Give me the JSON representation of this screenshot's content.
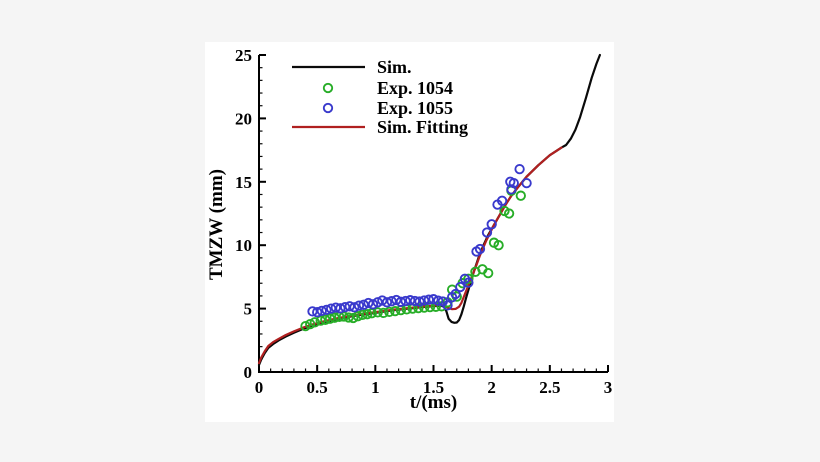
{
  "colors": {
    "page_background": "#f5f5f5",
    "panel_background": "#ffffff",
    "axis": "#000000"
  },
  "chart_data": {
    "type": "line",
    "title": "",
    "xlabel": "t/(ms)",
    "ylabel": "TMZW (mm)",
    "xlim": [
      0,
      3
    ],
    "ylim": [
      0,
      25
    ],
    "grid": false,
    "legend_position": "top-left",
    "x_major_ticks": [
      0,
      0.5,
      1,
      1.5,
      2,
      2.5,
      3
    ],
    "x_tick_labels": [
      "0",
      "0.5",
      "1",
      "1.5",
      "2",
      "2.5",
      "3"
    ],
    "x_minor_step": 0.1,
    "y_major_ticks": [
      0,
      5,
      10,
      15,
      20,
      25
    ],
    "y_tick_labels": [
      "0",
      "5",
      "10",
      "15",
      "20",
      "25"
    ],
    "y_minor_step": 1,
    "series": [
      {
        "name": "Sim.",
        "type": "line",
        "color": "#0a0a0a",
        "points": [
          [
            0,
            0.55
          ],
          [
            0.02,
            1.0
          ],
          [
            0.05,
            1.5
          ],
          [
            0.08,
            1.9
          ],
          [
            0.12,
            2.2
          ],
          [
            0.17,
            2.5
          ],
          [
            0.23,
            2.8
          ],
          [
            0.3,
            3.1
          ],
          [
            0.38,
            3.4
          ],
          [
            0.47,
            3.7
          ],
          [
            0.57,
            3.95
          ],
          [
            0.68,
            4.18
          ],
          [
            0.8,
            4.4
          ],
          [
            0.92,
            4.57
          ],
          [
            1.04,
            4.72
          ],
          [
            1.16,
            4.88
          ],
          [
            1.28,
            5.0
          ],
          [
            1.4,
            5.12
          ],
          [
            1.5,
            5.2
          ],
          [
            1.56,
            5.24
          ],
          [
            1.59,
            5.15
          ],
          [
            1.61,
            4.8
          ],
          [
            1.63,
            4.2
          ],
          [
            1.655,
            3.95
          ],
          [
            1.68,
            3.88
          ],
          [
            1.7,
            3.9
          ],
          [
            1.72,
            4.1
          ],
          [
            1.74,
            4.55
          ],
          [
            1.76,
            5.15
          ],
          [
            1.78,
            5.85
          ],
          [
            1.81,
            6.8
          ],
          [
            1.85,
            8.0
          ],
          [
            1.89,
            9.1
          ],
          [
            1.93,
            10.0
          ],
          [
            1.97,
            10.8
          ],
          [
            2.02,
            11.6
          ],
          [
            2.07,
            12.4
          ],
          [
            2.12,
            13.2
          ],
          [
            2.17,
            13.9
          ],
          [
            2.22,
            14.5
          ],
          [
            2.3,
            15.4
          ],
          [
            2.4,
            16.3
          ],
          [
            2.5,
            17.1
          ],
          [
            2.55,
            17.4
          ],
          [
            2.6,
            17.7
          ],
          [
            2.64,
            17.9
          ],
          [
            2.68,
            18.4
          ],
          [
            2.72,
            19.1
          ],
          [
            2.76,
            20.1
          ],
          [
            2.81,
            21.6
          ],
          [
            2.86,
            23.2
          ],
          [
            2.9,
            24.3
          ],
          [
            2.93,
            25.0
          ]
        ]
      },
      {
        "name": "Exp. 1054",
        "type": "scatter",
        "color": "#27ad27",
        "points": [
          [
            0.4,
            3.62
          ],
          [
            0.44,
            3.78
          ],
          [
            0.48,
            3.92
          ],
          [
            0.53,
            4.05
          ],
          [
            0.57,
            4.12
          ],
          [
            0.61,
            4.2
          ],
          [
            0.65,
            4.28
          ],
          [
            0.69,
            4.35
          ],
          [
            0.73,
            4.38
          ],
          [
            0.77,
            4.3
          ],
          [
            0.81,
            4.26
          ],
          [
            0.85,
            4.4
          ],
          [
            0.89,
            4.5
          ],
          [
            0.93,
            4.56
          ],
          [
            0.97,
            4.64
          ],
          [
            1.02,
            4.7
          ],
          [
            1.07,
            4.66
          ],
          [
            1.12,
            4.74
          ],
          [
            1.17,
            4.8
          ],
          [
            1.22,
            4.88
          ],
          [
            1.27,
            4.94
          ],
          [
            1.32,
            5.0
          ],
          [
            1.37,
            5.04
          ],
          [
            1.42,
            5.08
          ],
          [
            1.47,
            5.12
          ],
          [
            1.52,
            5.14
          ],
          [
            1.57,
            5.18
          ],
          [
            1.62,
            5.5
          ],
          [
            1.66,
            6.5
          ],
          [
            1.7,
            5.95
          ],
          [
            1.75,
            7.0
          ],
          [
            1.8,
            7.35
          ],
          [
            1.86,
            7.9
          ],
          [
            1.92,
            8.1
          ],
          [
            1.97,
            7.8
          ],
          [
            2.02,
            10.2
          ],
          [
            2.06,
            10.0
          ],
          [
            2.11,
            12.7
          ],
          [
            2.15,
            12.5
          ],
          [
            2.17,
            14.3
          ],
          [
            2.25,
            13.9
          ]
        ]
      },
      {
        "name": "Exp. 1055",
        "type": "scatter",
        "color": "#3939cc",
        "points": [
          [
            0.46,
            4.78
          ],
          [
            0.5,
            4.72
          ],
          [
            0.54,
            4.82
          ],
          [
            0.58,
            4.9
          ],
          [
            0.62,
            5.0
          ],
          [
            0.66,
            5.08
          ],
          [
            0.7,
            5.02
          ],
          [
            0.74,
            5.12
          ],
          [
            0.78,
            5.18
          ],
          [
            0.82,
            5.1
          ],
          [
            0.86,
            5.24
          ],
          [
            0.9,
            5.3
          ],
          [
            0.94,
            5.44
          ],
          [
            0.98,
            5.34
          ],
          [
            1.02,
            5.5
          ],
          [
            1.06,
            5.64
          ],
          [
            1.1,
            5.5
          ],
          [
            1.14,
            5.58
          ],
          [
            1.18,
            5.68
          ],
          [
            1.22,
            5.54
          ],
          [
            1.26,
            5.6
          ],
          [
            1.3,
            5.66
          ],
          [
            1.34,
            5.6
          ],
          [
            1.38,
            5.56
          ],
          [
            1.42,
            5.64
          ],
          [
            1.46,
            5.7
          ],
          [
            1.5,
            5.74
          ],
          [
            1.54,
            5.62
          ],
          [
            1.58,
            5.56
          ],
          [
            1.62,
            5.25
          ],
          [
            1.66,
            5.9
          ],
          [
            1.69,
            6.15
          ],
          [
            1.73,
            6.7
          ],
          [
            1.77,
            7.35
          ],
          [
            1.8,
            7.05
          ],
          [
            1.87,
            9.5
          ],
          [
            1.9,
            9.7
          ],
          [
            1.96,
            11.0
          ],
          [
            2.0,
            11.65
          ],
          [
            2.05,
            13.2
          ],
          [
            2.09,
            13.5
          ],
          [
            2.16,
            15.0
          ],
          [
            2.19,
            14.9
          ],
          [
            2.17,
            14.4
          ],
          [
            2.24,
            16.0
          ],
          [
            2.3,
            14.9
          ]
        ]
      },
      {
        "name": "Sim. Fitting",
        "type": "line",
        "color": "#b02020",
        "points": [
          [
            0,
            0.7
          ],
          [
            0.02,
            1.15
          ],
          [
            0.05,
            1.65
          ],
          [
            0.08,
            2.05
          ],
          [
            0.12,
            2.35
          ],
          [
            0.17,
            2.62
          ],
          [
            0.23,
            2.92
          ],
          [
            0.3,
            3.2
          ],
          [
            0.38,
            3.5
          ],
          [
            0.47,
            3.78
          ],
          [
            0.57,
            4.02
          ],
          [
            0.68,
            4.25
          ],
          [
            0.8,
            4.45
          ],
          [
            0.92,
            4.62
          ],
          [
            1.04,
            4.77
          ],
          [
            1.16,
            4.92
          ],
          [
            1.28,
            5.04
          ],
          [
            1.4,
            5.15
          ],
          [
            1.5,
            5.23
          ],
          [
            1.56,
            5.3
          ],
          [
            1.6,
            5.2
          ],
          [
            1.63,
            5.05
          ],
          [
            1.66,
            4.95
          ],
          [
            1.69,
            4.98
          ],
          [
            1.72,
            5.15
          ],
          [
            1.74,
            5.45
          ],
          [
            1.76,
            5.9
          ],
          [
            1.79,
            6.6
          ],
          [
            1.82,
            7.3
          ],
          [
            1.86,
            8.2
          ],
          [
            1.9,
            9.2
          ],
          [
            1.95,
            10.3
          ],
          [
            2.02,
            11.6
          ],
          [
            2.07,
            12.4
          ],
          [
            2.12,
            13.2
          ],
          [
            2.17,
            13.9
          ],
          [
            2.22,
            14.5
          ],
          [
            2.3,
            15.4
          ],
          [
            2.4,
            16.3
          ],
          [
            2.5,
            17.1
          ],
          [
            2.55,
            17.4
          ],
          [
            2.6,
            17.7
          ]
        ]
      }
    ]
  }
}
